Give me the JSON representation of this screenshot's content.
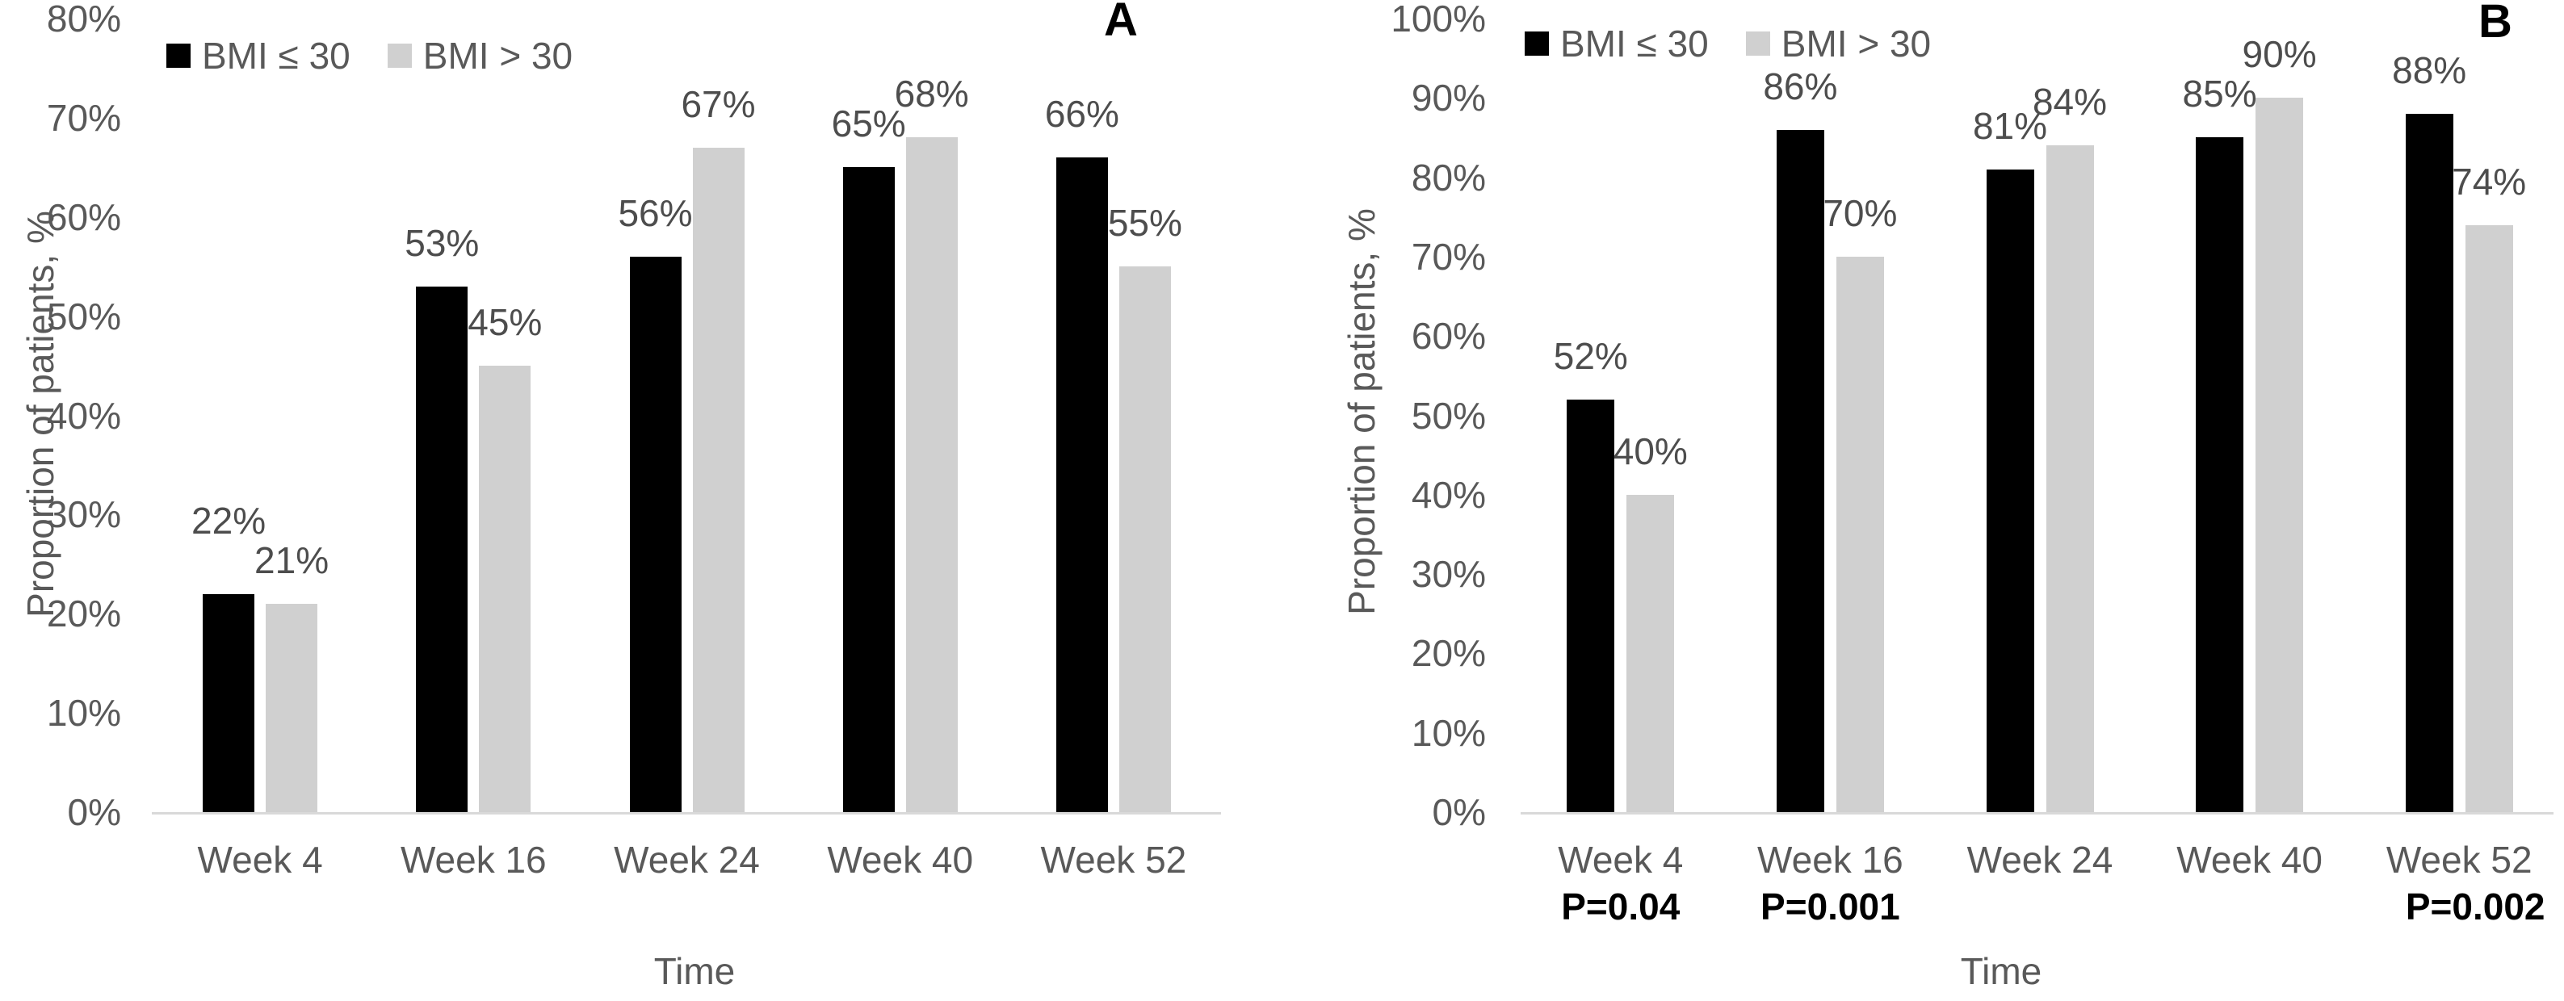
{
  "figure": {
    "background": "#ffffff"
  },
  "colors": {
    "series_black": "#000000",
    "series_gray": "#d0d0d0",
    "text_primary": "#595959",
    "text_values": "#4d4d4d",
    "axis_line": "#d9d9d9",
    "p_value_text": "#000000",
    "panel_letter": "#000000"
  },
  "chart_data": [
    {
      "type": "bar",
      "panel_label": "A",
      "title": "",
      "xlabel": "Time",
      "ylabel": "Proportion of patients, %",
      "ylim": [
        0,
        80
      ],
      "ytick_step": 10,
      "ytick_suffix": "%",
      "grid": false,
      "legend_position": "top-inside",
      "categories": [
        "Week 4",
        "Week 16",
        "Week 24",
        "Week 40",
        "Week 52"
      ],
      "series": [
        {
          "name": "BMI ≤ 30",
          "color_key": "series_black",
          "values": [
            22,
            53,
            56,
            65,
            66
          ]
        },
        {
          "name": "BMI > 30",
          "color_key": "series_gray",
          "values": [
            21,
            45,
            67,
            68,
            55
          ]
        }
      ],
      "value_suffix": "%",
      "p_values": [
        "",
        "",
        "",
        "",
        ""
      ]
    },
    {
      "type": "bar",
      "panel_label": "B",
      "title": "",
      "xlabel": "Time",
      "ylabel": "Proportion of patients, %",
      "ylim": [
        0,
        100
      ],
      "ytick_step": 10,
      "ytick_suffix": "%",
      "grid": false,
      "legend_position": "top-inside",
      "categories": [
        "Week 4",
        "Week 16",
        "Week 24",
        "Week 40",
        "Week 52"
      ],
      "series": [
        {
          "name": "BMI ≤ 30",
          "color_key": "series_black",
          "values": [
            52,
            86,
            81,
            85,
            88
          ]
        },
        {
          "name": "BMI > 30",
          "color_key": "series_gray",
          "values": [
            40,
            70,
            84,
            90,
            74
          ]
        }
      ],
      "value_suffix": "%",
      "p_values": [
        "P=0.04",
        "P=0.001",
        "",
        "",
        "P=0.002"
      ]
    }
  ]
}
